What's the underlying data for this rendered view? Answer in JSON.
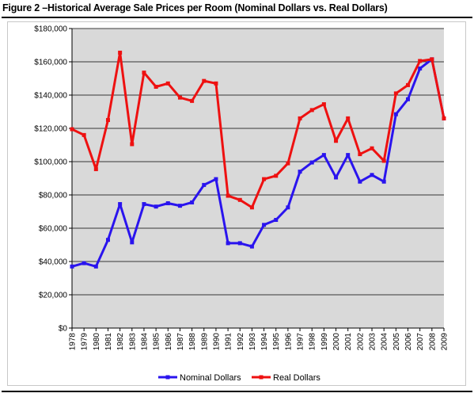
{
  "figure": {
    "title": "Figure 2 –Historical Average Sale Prices per Room (Nominal Dollars vs. Real Dollars)"
  },
  "chart_data": {
    "type": "line",
    "title": "",
    "xlabel": "",
    "ylabel": "",
    "x": [
      "1978",
      "1979",
      "1980",
      "1981",
      "1982",
      "1983",
      "1984",
      "1985",
      "1986",
      "1987",
      "1988",
      "1989",
      "1990",
      "1991",
      "1992",
      "1993",
      "1994",
      "1995",
      "1996",
      "1997",
      "1998",
      "1999",
      "2000",
      "2001",
      "2002",
      "2003",
      "2004",
      "2005",
      "2006",
      "2007",
      "2008",
      "2009"
    ],
    "ylim": [
      0,
      180000
    ],
    "y_ticks": [
      0,
      20000,
      40000,
      60000,
      80000,
      100000,
      120000,
      140000,
      160000,
      180000
    ],
    "y_tick_labels": [
      "$0",
      "$20,000",
      "$40,000",
      "$60,000",
      "$80,000",
      "$100,000",
      "$120,000",
      "$140,000",
      "$160,000",
      "$180,000"
    ],
    "grid": "horizontal",
    "plot_background": "#d9d9d9",
    "legend_position": "bottom",
    "series": [
      {
        "name": "Nominal Dollars",
        "color": "#2a14ee",
        "marker": "square",
        "values": [
          37000,
          39000,
          37000,
          53000,
          74500,
          51500,
          74500,
          73000,
          75000,
          73500,
          75500,
          86000,
          89500,
          51000,
          51000,
          49000,
          62000,
          65000,
          72500,
          94000,
          99500,
          104000,
          90500,
          104000,
          88000,
          92000,
          88000,
          128500,
          137500,
          156000,
          161500,
          126000
        ]
      },
      {
        "name": "Real Dollars",
        "color": "#ee1111",
        "marker": "square",
        "values": [
          119500,
          116000,
          95500,
          125000,
          165500,
          110500,
          153500,
          145000,
          147000,
          138500,
          136500,
          148500,
          147000,
          79500,
          77000,
          72500,
          89500,
          91500,
          99000,
          126000,
          131000,
          134500,
          112500,
          126000,
          104500,
          108000,
          100500,
          141000,
          146000,
          160500,
          161500,
          126000
        ]
      }
    ]
  }
}
